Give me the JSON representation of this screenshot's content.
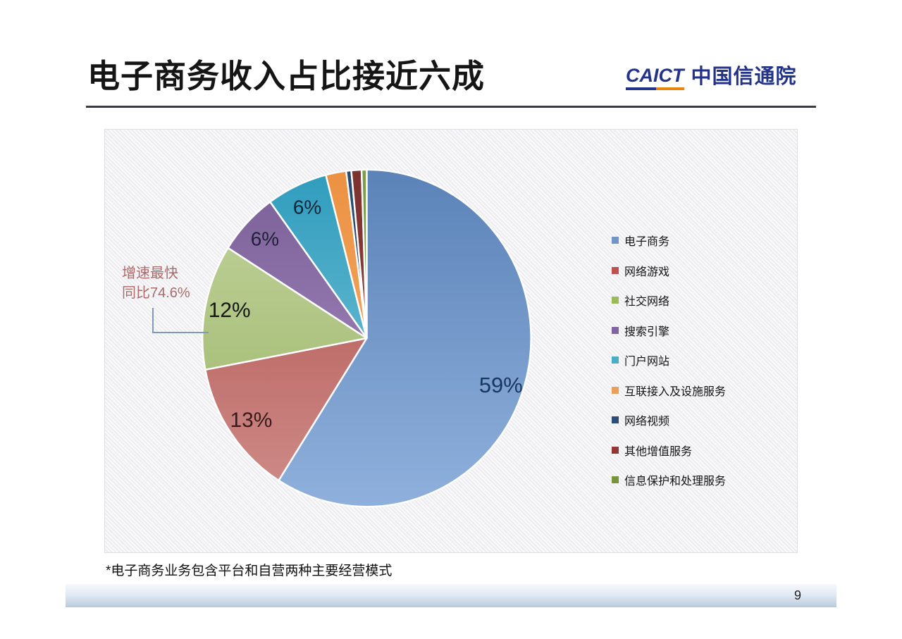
{
  "slide": {
    "title": "电子商务收入占比接近六成",
    "footnote": "*电子商务业务包含平台和自营两种主要经营模式",
    "page_number": "9"
  },
  "logo": {
    "acronym": "CAICT",
    "name": "中国信通院",
    "navy": "#24338a",
    "orange": "#e8850f"
  },
  "annotation": {
    "line1": "增速最快",
    "line2": "同比74.6%",
    "color": "#ab6a6a",
    "connector_color": "#8099b8"
  },
  "chart_data": {
    "type": "pie",
    "title": "",
    "start_angle_deg": 0,
    "direction": "clockwise",
    "legend_position": "right",
    "categories": [
      "电子商务",
      "网络游戏",
      "社交网络",
      "搜索引擎",
      "门户网站",
      "互联接入及设施服务",
      "网络视频",
      "其他增值服务",
      "信息保护和处理服务"
    ],
    "values": [
      59,
      13,
      12,
      6,
      6,
      2,
      0.5,
      1,
      0.5
    ],
    "slice_labels": [
      "59%",
      "13%",
      "12%",
      "6%",
      "6%",
      "",
      "",
      "",
      ""
    ],
    "label_colors": [
      "#17375e",
      "#381a1c",
      "#161616",
      "#20203a",
      "#0f2438",
      "",
      "",
      "",
      ""
    ],
    "slice_gradients": [
      [
        "#5b83b8",
        "#8fb0dc"
      ],
      [
        "#ac4c4a",
        "#d08e8a"
      ],
      [
        "#c3d4a0",
        "#9ab464"
      ],
      [
        "#7a5e98",
        "#ab93c3"
      ],
      [
        "#2f9cbd",
        "#85cbdb"
      ],
      [
        "#ec9142",
        "#f6b377"
      ],
      [
        "#2b4a6f",
        "#2b4a6f"
      ],
      [
        "#7c322f",
        "#9c4945"
      ],
      [
        "#7f9c4a",
        "#7f9c4a"
      ]
    ],
    "legend_colors": [
      "#7195c4",
      "#c0504d",
      "#9bbb59",
      "#8064a2",
      "#4bacc6",
      "#eb9e59",
      "#2c4d75",
      "#943634",
      "#77933c"
    ]
  }
}
